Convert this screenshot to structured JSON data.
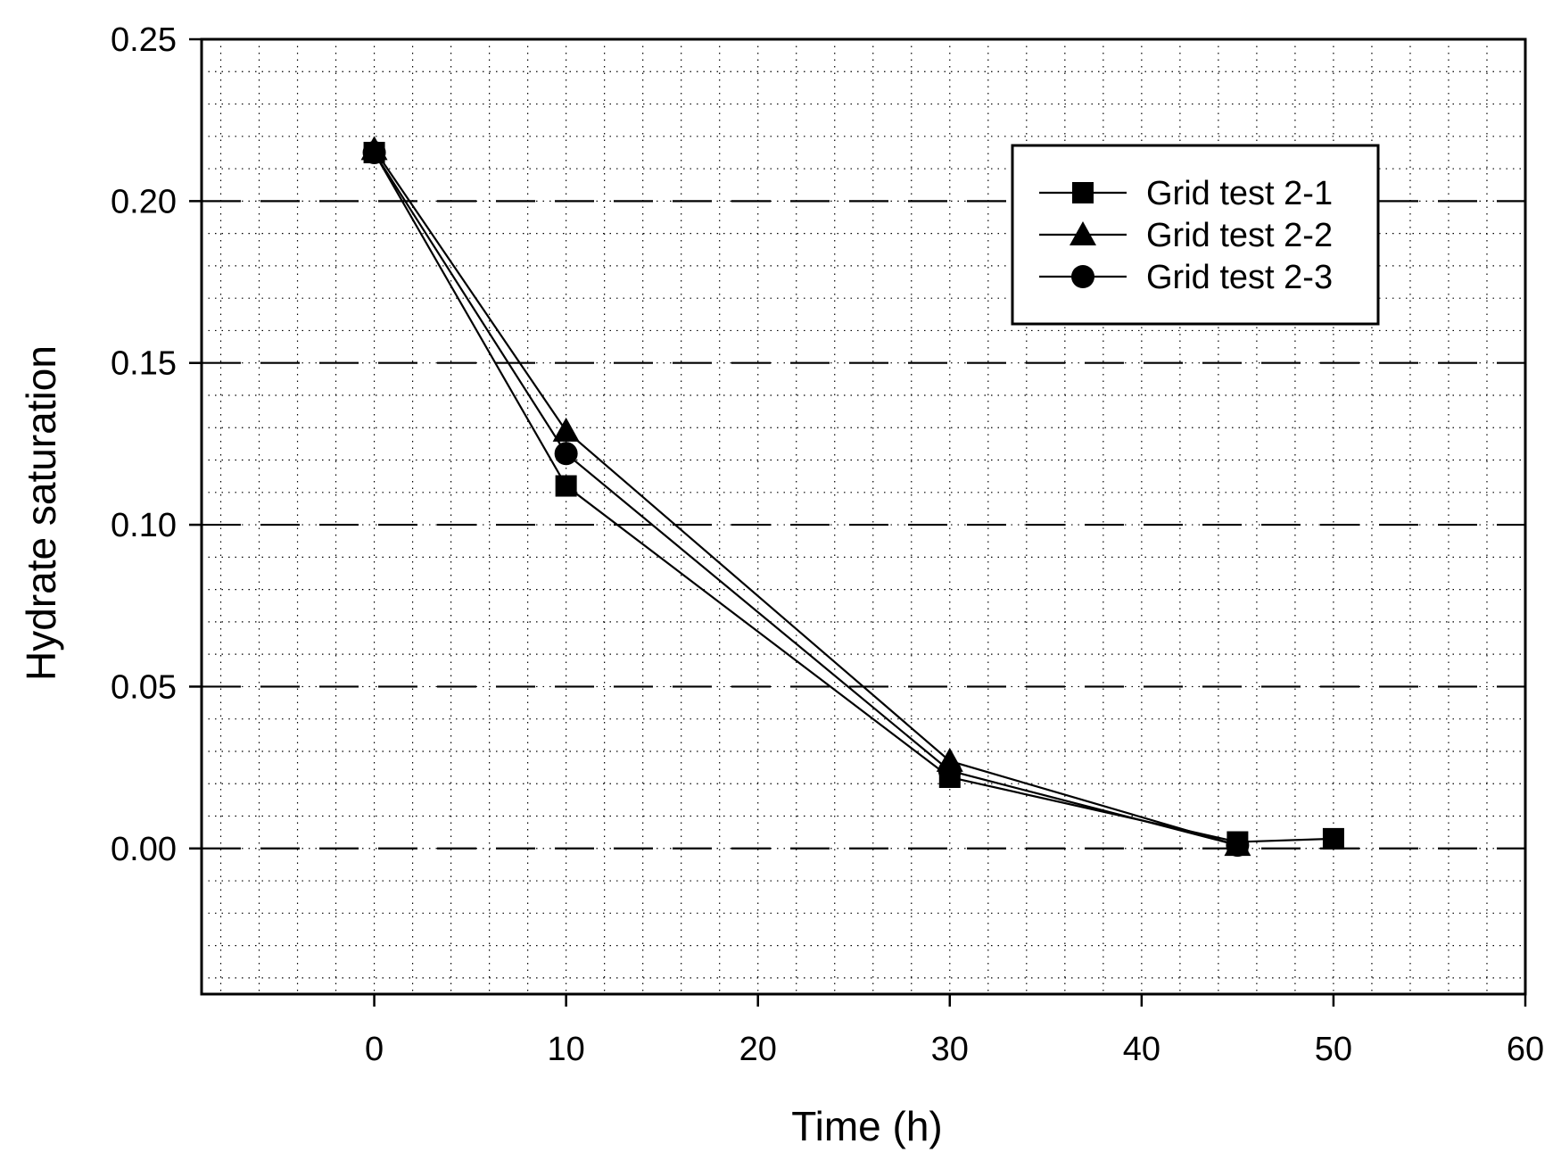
{
  "chart_data": {
    "type": "line",
    "title": "",
    "xlabel": "Time (h)",
    "ylabel": "Hydrate saturation",
    "xlim": [
      -9,
      60
    ],
    "ylim": [
      -0.045,
      0.25
    ],
    "xticks": [
      0,
      10,
      20,
      30,
      40,
      50,
      60
    ],
    "yticks": [
      0.0,
      0.05,
      0.1,
      0.15,
      0.2,
      0.25
    ],
    "xtick_labels": [
      "0",
      "10",
      "20",
      "30",
      "40",
      "50",
      "60"
    ],
    "ytick_labels": [
      "0.00",
      "0.05",
      "0.10",
      "0.15",
      "0.20",
      "0.25"
    ],
    "grid": {
      "major_y": "dashed",
      "minor": "dotted",
      "minor_x_step": 2,
      "minor_y_step": 0.01
    },
    "legend_position": "top-right",
    "series": [
      {
        "name": "Grid test 2-1",
        "marker": "square",
        "x": [
          0,
          10,
          30,
          45,
          50
        ],
        "y": [
          0.215,
          0.112,
          0.022,
          0.002,
          0.003
        ]
      },
      {
        "name": "Grid test 2-2",
        "marker": "triangle",
        "x": [
          0,
          10,
          30,
          45
        ],
        "y": [
          0.216,
          0.129,
          0.027,
          0.001
        ]
      },
      {
        "name": "Grid test 2-3",
        "marker": "circle",
        "x": [
          0,
          10,
          30,
          45
        ],
        "y": [
          0.215,
          0.122,
          0.024,
          0.001
        ]
      }
    ],
    "colors": {
      "line": "#000000",
      "background": "#ffffff",
      "grid": "#000000"
    }
  }
}
